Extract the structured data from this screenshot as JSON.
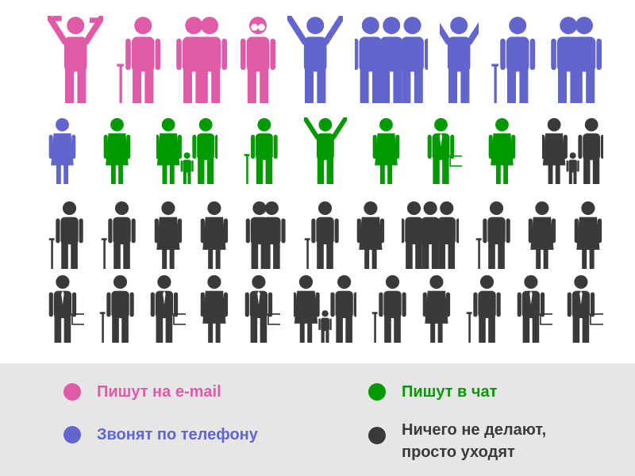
{
  "colors": {
    "email": "#e05aa8",
    "phone": "#6266cc",
    "chat": "#009a00",
    "none": "#3a3a3a"
  },
  "rows": [
    [
      [
        "email",
        "money"
      ],
      [
        "email",
        "cane"
      ],
      [
        "email",
        "couple"
      ],
      [
        "email",
        "binocular"
      ],
      [
        "phone",
        "jump"
      ],
      [
        "phone",
        "group"
      ],
      [
        "phone",
        "yoga"
      ],
      [
        "phone",
        "cane"
      ],
      [
        "phone",
        "couple"
      ]
    ],
    [
      [
        "phone",
        "woman"
      ],
      [
        "chat",
        "woman"
      ],
      [
        "chat",
        "family"
      ],
      [
        "chat",
        "cane"
      ],
      [
        "chat",
        "jump"
      ],
      [
        "chat",
        "woman"
      ],
      [
        "chat",
        "business"
      ],
      [
        "chat",
        "woman"
      ],
      [
        "none",
        "family"
      ]
    ],
    [
      [
        "none",
        "cane"
      ],
      [
        "none",
        "cane"
      ],
      [
        "none",
        "woman"
      ],
      [
        "none",
        "woman"
      ],
      [
        "none",
        "couple"
      ],
      [
        "none",
        "cane"
      ],
      [
        "none",
        "woman"
      ],
      [
        "none",
        "group"
      ],
      [
        "none",
        "cane"
      ],
      [
        "none",
        "woman"
      ],
      [
        "none",
        "woman"
      ]
    ],
    [
      [
        "none",
        "business"
      ],
      [
        "none",
        "cane"
      ],
      [
        "none",
        "business"
      ],
      [
        "none",
        "woman"
      ],
      [
        "none",
        "business"
      ],
      [
        "none",
        "family"
      ],
      [
        "none",
        "cane"
      ],
      [
        "none",
        "woman"
      ],
      [
        "none",
        "cane"
      ],
      [
        "none",
        "business"
      ],
      [
        "none",
        "business"
      ]
    ]
  ],
  "legend": {
    "email": "Пишут на e-mail",
    "phone": "Звонят по телефону",
    "chat": "Пишут в чат",
    "none_line1": "Ничего не делают,",
    "none_line2": "просто уходят"
  }
}
